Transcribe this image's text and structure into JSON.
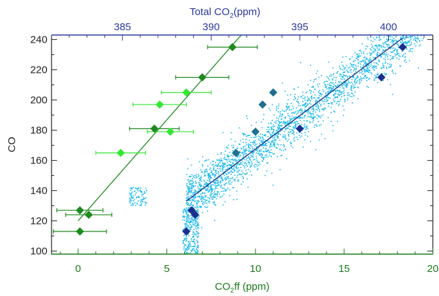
{
  "chart_data": {
    "type": "scatter",
    "colors": {
      "bottom_axis": "#1a7a1a",
      "top_axis": "#2b3a9e",
      "left_axis": "#222222",
      "cloud": "#18b8ee",
      "fit_green": "#1f8a1f",
      "fit_navy": "#1b2a78",
      "dk_green": "#1d8a1d",
      "lt_green": "#33e833",
      "teal": "#1f6f8f",
      "navy": "#1c2e8c"
    },
    "axes": {
      "xbottom": {
        "label_main": "CO",
        "label_sub": "2",
        "label_rest": "ff (ppm)",
        "range": [
          -1.5,
          20
        ],
        "ticks": [
          "0",
          "5",
          "10",
          "15",
          "20"
        ]
      },
      "xtop": {
        "label_main": "Total CO",
        "label_sub": "2",
        "label_rest": "(ppm)",
        "range": [
          381,
          402.5
        ],
        "ticks": [
          "385",
          "390",
          "395",
          "400"
        ]
      },
      "y": {
        "label": "CO",
        "range": [
          98,
          243
        ],
        "ticks": [
          "100",
          "120",
          "140",
          "160",
          "180",
          "200",
          "220",
          "240"
        ]
      }
    },
    "series": [
      {
        "marker": "diamond",
        "color_key": "dk_green",
        "xerr": true,
        "points": [
          {
            "x": 8.7,
            "y": 235,
            "xerr": 1.4
          },
          {
            "x": 7.0,
            "y": 215,
            "xerr": 1.5
          },
          {
            "x": 4.3,
            "y": 181,
            "xerr": 1.4
          },
          {
            "x": 0.1,
            "y": 127,
            "xerr": 1.3
          },
          {
            "x": 0.6,
            "y": 124,
            "xerr": 1.3
          },
          {
            "x": 0.1,
            "y": 113,
            "xerr": 1.5
          }
        ]
      },
      {
        "marker": "diamond",
        "color_key": "lt_green",
        "xerr": true,
        "points": [
          {
            "x": 6.1,
            "y": 205,
            "xerr": 1.4
          },
          {
            "x": 4.6,
            "y": 197,
            "xerr": 1.5
          },
          {
            "x": 5.2,
            "y": 179,
            "xerr": 1.3
          },
          {
            "x": 2.4,
            "y": 165,
            "xerr": 1.4
          }
        ]
      },
      {
        "marker": "diamond",
        "color_key": "teal",
        "xerr": false,
        "points": [
          {
            "x": 11.0,
            "y": 205
          },
          {
            "x": 10.4,
            "y": 197
          },
          {
            "x": 10.0,
            "y": 179
          },
          {
            "x": 8.9,
            "y": 165
          }
        ]
      },
      {
        "marker": "diamond",
        "color_key": "navy",
        "xerr": false,
        "points": [
          {
            "x": 18.3,
            "y": 235
          },
          {
            "x": 17.1,
            "y": 215
          },
          {
            "x": 12.5,
            "y": 181
          },
          {
            "x": 6.4,
            "y": 127
          },
          {
            "x": 6.6,
            "y": 124
          },
          {
            "x": 6.1,
            "y": 113
          }
        ]
      }
    ],
    "fit_lines": [
      {
        "color_key": "fit_green",
        "x": [
          0.0,
          9.2
        ],
        "y": [
          120,
          243
        ]
      },
      {
        "color_key": "fit_navy",
        "x": [
          6.1,
          18.3
        ],
        "y": [
          133,
          241
        ]
      }
    ],
    "cloud": {
      "color_key": "cloud",
      "n": 2600,
      "fit_x_range": [
        6.1,
        19.5
      ],
      "trend": {
        "x0": 6.1,
        "y0": 133,
        "slope": 8.85
      },
      "spread": 11,
      "clusters": [
        {
          "x": [
            2.9,
            3.9
          ],
          "y": [
            130,
            142
          ],
          "n": 90
        },
        {
          "x": [
            5.9,
            6.8
          ],
          "y": [
            98,
            128
          ],
          "n": 260
        }
      ]
    }
  }
}
